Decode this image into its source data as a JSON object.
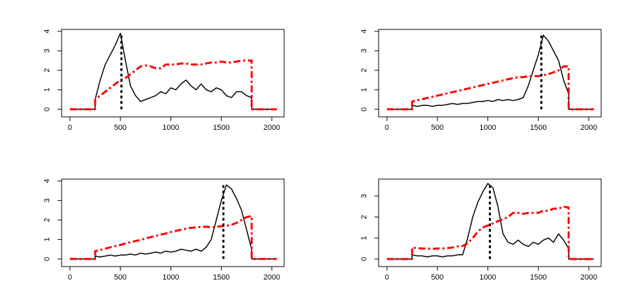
{
  "chart_data": [
    {
      "type": "line",
      "x": [
        0,
        100,
        200,
        249,
        250,
        300,
        350,
        400,
        450,
        500,
        550,
        600,
        650,
        700,
        750,
        800,
        850,
        900,
        950,
        1000,
        1050,
        1100,
        1150,
        1200,
        1250,
        1300,
        1350,
        1400,
        1450,
        1500,
        1550,
        1600,
        1650,
        1700,
        1750,
        1800,
        1801,
        1900,
        2050
      ],
      "series": [
        {
          "color": "#000000",
          "values": [
            0,
            0,
            0,
            0,
            0.5,
            1.5,
            2.3,
            2.8,
            3.3,
            3.9,
            2.5,
            1.2,
            0.7,
            0.4,
            0.5,
            0.6,
            0.7,
            0.9,
            0.8,
            1.1,
            1.0,
            1.3,
            1.5,
            1.2,
            1.0,
            1.3,
            1.0,
            0.9,
            1.1,
            1.0,
            0.7,
            0.6,
            0.9,
            0.9,
            0.7,
            0.6,
            0,
            0,
            0
          ]
        },
        {
          "color": "#ff0000",
          "values": [
            0,
            0,
            0,
            0,
            0.5,
            0.7,
            0.9,
            1.1,
            1.3,
            1.5,
            1.6,
            1.8,
            2.0,
            2.2,
            2.25,
            2.2,
            2.1,
            2.1,
            2.3,
            2.3,
            2.3,
            2.35,
            2.35,
            2.3,
            2.3,
            2.3,
            2.35,
            2.4,
            2.4,
            2.45,
            2.4,
            2.4,
            2.45,
            2.5,
            2.5,
            2.5,
            0,
            0,
            0
          ]
        }
      ],
      "vline": 510,
      "xlim": [
        -82,
        2122
      ],
      "ylim": [
        -0.39,
        4.1
      ],
      "xticks": [
        0,
        500,
        1000,
        1500,
        2000
      ],
      "yticks": [
        0,
        1,
        2,
        3,
        4
      ]
    },
    {
      "type": "line",
      "x": [
        0,
        100,
        200,
        249,
        250,
        300,
        350,
        400,
        450,
        500,
        550,
        600,
        650,
        700,
        750,
        800,
        850,
        900,
        950,
        1000,
        1050,
        1100,
        1150,
        1200,
        1250,
        1300,
        1350,
        1400,
        1450,
        1500,
        1550,
        1600,
        1650,
        1700,
        1750,
        1800,
        1801,
        1900,
        2050
      ],
      "series": [
        {
          "color": "#000000",
          "values": [
            0,
            0,
            0,
            0,
            0.2,
            0.15,
            0.2,
            0.2,
            0.15,
            0.2,
            0.2,
            0.25,
            0.3,
            0.25,
            0.3,
            0.3,
            0.35,
            0.4,
            0.4,
            0.45,
            0.4,
            0.5,
            0.45,
            0.5,
            0.45,
            0.5,
            0.6,
            1.2,
            2.0,
            2.8,
            3.8,
            3.5,
            3.0,
            2.5,
            1.5,
            0.8,
            0,
            0,
            0
          ]
        },
        {
          "color": "#ff0000",
          "values": [
            0,
            0,
            0,
            0,
            0.4,
            0.46,
            0.52,
            0.58,
            0.64,
            0.7,
            0.76,
            0.82,
            0.88,
            0.94,
            1.0,
            1.06,
            1.12,
            1.18,
            1.24,
            1.3,
            1.36,
            1.42,
            1.48,
            1.54,
            1.6,
            1.65,
            1.65,
            1.7,
            1.7,
            1.7,
            1.75,
            1.8,
            1.9,
            2.0,
            2.2,
            2.2,
            0,
            0,
            0
          ]
        }
      ],
      "vline": 1530,
      "xlim": [
        -82,
        2122
      ],
      "ylim": [
        -0.39,
        4.1
      ],
      "xticks": [
        0,
        500,
        1000,
        1500,
        2000
      ],
      "yticks": [
        0,
        1,
        2,
        3,
        4
      ]
    },
    {
      "type": "line",
      "x": [
        0,
        100,
        200,
        249,
        250,
        300,
        350,
        400,
        450,
        500,
        550,
        600,
        650,
        700,
        750,
        800,
        850,
        900,
        950,
        1000,
        1050,
        1100,
        1150,
        1200,
        1250,
        1300,
        1350,
        1400,
        1450,
        1500,
        1550,
        1600,
        1650,
        1700,
        1750,
        1800,
        1801,
        1900,
        2050
      ],
      "series": [
        {
          "color": "#000000",
          "values": [
            0,
            0,
            0,
            0,
            0.15,
            0.1,
            0.15,
            0.2,
            0.15,
            0.2,
            0.2,
            0.25,
            0.2,
            0.3,
            0.25,
            0.3,
            0.35,
            0.3,
            0.4,
            0.35,
            0.4,
            0.5,
            0.45,
            0.4,
            0.5,
            0.4,
            0.6,
            1.0,
            2.0,
            3.0,
            3.8,
            3.6,
            3.1,
            2.5,
            1.5,
            0.5,
            0,
            0,
            0
          ]
        },
        {
          "color": "#ff0000",
          "values": [
            0,
            0,
            0,
            0,
            0.4,
            0.46,
            0.53,
            0.6,
            0.66,
            0.72,
            0.79,
            0.86,
            0.92,
            0.98,
            1.05,
            1.12,
            1.18,
            1.25,
            1.31,
            1.38,
            1.44,
            1.5,
            1.55,
            1.6,
            1.62,
            1.65,
            1.65,
            1.63,
            1.65,
            1.68,
            1.7,
            1.75,
            1.85,
            2.0,
            2.15,
            2.2,
            0,
            0,
            0
          ]
        }
      ],
      "vline": 1520,
      "xlim": [
        -82,
        2122
      ],
      "ylim": [
        -0.39,
        4.1
      ],
      "xticks": [
        0,
        500,
        1000,
        1500,
        2000
      ],
      "yticks": [
        0,
        1,
        2,
        3,
        4
      ]
    },
    {
      "type": "line",
      "x": [
        0,
        100,
        200,
        249,
        250,
        300,
        350,
        400,
        450,
        500,
        550,
        600,
        650,
        700,
        750,
        800,
        850,
        900,
        950,
        1000,
        1050,
        1100,
        1150,
        1200,
        1250,
        1300,
        1350,
        1400,
        1450,
        1500,
        1550,
        1600,
        1650,
        1700,
        1750,
        1800,
        1801,
        1900,
        2050
      ],
      "series": [
        {
          "color": "#000000",
          "values": [
            0,
            0,
            0,
            0,
            0.2,
            0.15,
            0.15,
            0.1,
            0.15,
            0.15,
            0.1,
            0.15,
            0.15,
            0.2,
            0.2,
            1.0,
            2.0,
            2.7,
            3.2,
            3.6,
            3.4,
            2.5,
            1.2,
            0.8,
            0.7,
            0.9,
            0.7,
            0.6,
            0.8,
            0.7,
            0.9,
            1.0,
            0.8,
            1.2,
            0.9,
            0.5,
            0,
            0,
            0
          ]
        },
        {
          "color": "#ff0000",
          "values": [
            0,
            0,
            0,
            0,
            0.55,
            0.52,
            0.5,
            0.5,
            0.48,
            0.5,
            0.5,
            0.52,
            0.55,
            0.6,
            0.62,
            0.75,
            1.0,
            1.3,
            1.5,
            1.6,
            1.7,
            1.8,
            1.9,
            2.0,
            2.2,
            2.2,
            2.15,
            2.2,
            2.2,
            2.2,
            2.3,
            2.3,
            2.4,
            2.4,
            2.5,
            2.45,
            0,
            0,
            0
          ]
        }
      ],
      "vline": 1020,
      "xlim": [
        -82,
        2122
      ],
      "ylim": [
        -0.36,
        3.81
      ],
      "xticks": [
        0,
        500,
        1000,
        1500,
        2000
      ],
      "yticks": [
        0,
        1,
        2,
        3
      ]
    }
  ]
}
